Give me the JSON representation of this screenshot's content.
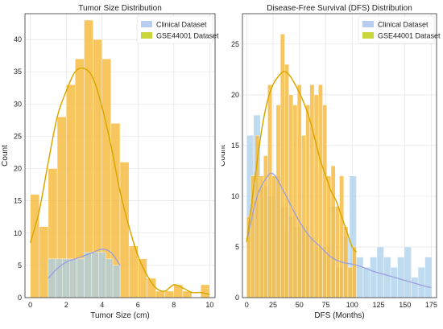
{
  "chart_data": [
    {
      "id": "tumor",
      "type": "bar",
      "title": "Tumor Size Distribution",
      "xlabel": "Tumor Size (cm)",
      "ylabel": "Count",
      "xlim": [
        -0.3,
        10.3
      ],
      "ylim": [
        0,
        44
      ],
      "xticks": [
        0,
        2,
        4,
        6,
        8,
        10
      ],
      "yticks": [
        0,
        5,
        10,
        15,
        20,
        25,
        30,
        35,
        40
      ],
      "legend_position": "top-right",
      "grid": true,
      "colors": {
        "clinical": "#a9cfe9",
        "gse": "#f6b93b",
        "clinical_line": "#9c9ee0",
        "gse_line": "#d9a800"
      },
      "series": [
        {
          "name": "Clinical Dataset",
          "bin_edges": [
            1.0,
            1.4,
            1.8,
            2.2,
            2.6,
            3.0,
            3.4,
            3.8,
            4.2,
            4.6,
            5.0
          ],
          "values": [
            6,
            6,
            6,
            6,
            6,
            7,
            7,
            7,
            6,
            5
          ],
          "kde_x": [
            1.0,
            1.5,
            2.0,
            2.5,
            3.0,
            3.5,
            4.0,
            4.5,
            5.0
          ],
          "kde_y": [
            3.0,
            4.5,
            5.5,
            6.0,
            6.5,
            7.0,
            7.5,
            7.0,
            5.0
          ]
        },
        {
          "name": "GSE44001 Dataset",
          "bin_edges": [
            0.0,
            0.5,
            1.0,
            1.5,
            2.0,
            2.5,
            3.0,
            3.5,
            4.0,
            4.5,
            5.0,
            5.5,
            6.0,
            6.5,
            7.0,
            7.5,
            8.0,
            8.5,
            9.0,
            9.5,
            10.0
          ],
          "values": [
            16,
            11,
            20,
            28,
            33,
            37,
            43,
            40,
            37,
            27,
            21,
            8,
            6,
            3,
            1,
            1,
            2,
            1,
            0,
            2
          ],
          "kde_x": [
            0.0,
            0.5,
            1.0,
            1.5,
            2.0,
            2.5,
            3.0,
            3.5,
            4.0,
            4.5,
            5.0,
            5.5,
            6.0,
            6.5,
            7.0,
            7.5,
            8.0,
            8.5,
            9.0,
            9.5,
            10.0
          ],
          "kde_y": [
            8.5,
            13.5,
            21.0,
            28.0,
            32.0,
            35.0,
            35.5,
            34.0,
            29.5,
            23.5,
            16.5,
            11.0,
            6.5,
            3.5,
            1.5,
            1.0,
            2.0,
            1.5,
            0.8,
            0.8,
            0.5
          ]
        }
      ]
    },
    {
      "id": "dfs",
      "type": "bar",
      "title": "Disease-Free Survival (DFS) Distribution",
      "xlabel": "DFS (Months)",
      "ylabel": "Count",
      "xlim": [
        -4,
        180
      ],
      "ylim": [
        0,
        28
      ],
      "xticks": [
        0,
        25,
        50,
        75,
        100,
        125,
        150,
        175
      ],
      "yticks": [
        0,
        5,
        10,
        15,
        20,
        25
      ],
      "legend_position": "top-right",
      "grid": true,
      "colors": {
        "clinical": "#a9cfe9",
        "gse": "#f6b93b",
        "clinical_line": "#9c9ee0",
        "gse_line": "#d9a800"
      },
      "series": [
        {
          "name": "Clinical Dataset",
          "bin_edges": [
            0,
            6.5,
            13,
            19.5,
            26,
            32.5,
            39,
            45.5,
            52,
            58.5,
            65,
            71.5,
            78,
            84.5,
            91,
            97.5,
            104,
            110.5,
            117,
            123.5,
            130,
            136.5,
            143,
            149.5,
            156,
            162.5,
            169,
            175.5
          ],
          "values": [
            16,
            18,
            11,
            10,
            12,
            9,
            8,
            7,
            7,
            6,
            5,
            5,
            9,
            3,
            6,
            12,
            4,
            3,
            4,
            5,
            4,
            3,
            4,
            5,
            2,
            3,
            4
          ],
          "kde_x": [
            0,
            10,
            20,
            25,
            30,
            40,
            50,
            60,
            70,
            80,
            90,
            100,
            110,
            120,
            130,
            140,
            150,
            160,
            170,
            175
          ],
          "kde_y": [
            5.5,
            10.0,
            12.0,
            12.2,
            11.5,
            9.5,
            7.5,
            6.0,
            5.0,
            4.0,
            3.5,
            3.3,
            3.0,
            2.6,
            2.3,
            2.0,
            1.7,
            1.4,
            1.1,
            1.0
          ]
        },
        {
          "name": "GSE44001 Dataset",
          "bin_edges": [
            0,
            4,
            8,
            12,
            16,
            20,
            24,
            28,
            32,
            36,
            40,
            44,
            48,
            52,
            56,
            60,
            64,
            68,
            72,
            76,
            80,
            84,
            88,
            92,
            96,
            100,
            104
          ],
          "values": [
            8,
            12,
            16,
            12,
            14,
            21,
            12,
            19,
            26,
            23,
            20,
            19,
            21,
            16,
            19,
            21,
            20,
            21,
            19,
            12,
            13,
            9,
            12,
            7,
            3,
            5
          ],
          "kde_x": [
            0,
            5,
            10,
            15,
            20,
            25,
            30,
            35,
            40,
            45,
            50,
            55,
            60,
            65,
            70,
            75,
            80,
            85,
            90,
            95,
            100,
            104
          ],
          "kde_y": [
            5.5,
            9.5,
            13.5,
            17.0,
            19.5,
            21.0,
            21.8,
            22.3,
            22.0,
            21.2,
            20.2,
            19.0,
            17.5,
            15.5,
            13.5,
            12.0,
            10.5,
            9.5,
            8.0,
            6.5,
            5.0,
            4.5
          ]
        }
      ]
    }
  ]
}
